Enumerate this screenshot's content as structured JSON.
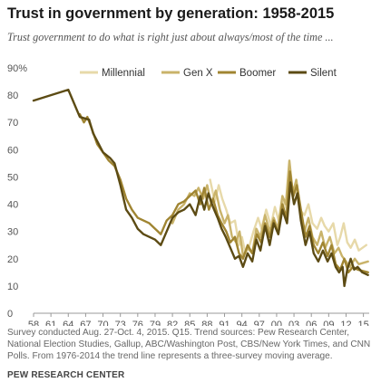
{
  "chart_data": {
    "type": "line",
    "title": "Trust in government by generation: 1958-2015",
    "subtitle": "Trust government to do what is right just about always/most of the time ...",
    "xlabel": "",
    "ylabel": "",
    "xlim": [
      1958,
      2016
    ],
    "ylim": [
      0,
      90
    ],
    "x_tick_labels": [
      "58",
      "61",
      "64",
      "67",
      "70",
      "73",
      "76",
      "79",
      "82",
      "85",
      "88",
      "91",
      "94",
      "97",
      "00",
      "03",
      "06",
      "09",
      "12",
      "15"
    ],
    "x_ticks": [
      1958,
      1961,
      1964,
      1967,
      1970,
      1973,
      1976,
      1979,
      1982,
      1985,
      1988,
      1991,
      1994,
      1997,
      2000,
      2003,
      2006,
      2009,
      2012,
      2015
    ],
    "y_ticks": [
      0,
      10,
      20,
      30,
      40,
      50,
      60,
      70,
      80,
      90
    ],
    "y_tick_labels": [
      "0",
      "10",
      "20",
      "30",
      "40",
      "50",
      "60",
      "70",
      "80",
      "90%"
    ],
    "grid": false,
    "legend_position": "top",
    "series": [
      {
        "name": "Millennial",
        "color": "#e7d9a9",
        "points": [
          [
            1988.5,
            49
          ],
          [
            1989.3,
            41
          ],
          [
            1990,
            47
          ],
          [
            1990.6,
            42
          ],
          [
            1991.3,
            38
          ],
          [
            1992,
            33
          ],
          [
            1992.8,
            34
          ],
          [
            1993.5,
            25
          ],
          [
            1994,
            28
          ],
          [
            1994.6,
            22
          ],
          [
            1995.2,
            24
          ],
          [
            1996,
            30
          ],
          [
            1996.8,
            35
          ],
          [
            1997.4,
            31
          ],
          [
            1998.2,
            38
          ],
          [
            1999,
            32
          ],
          [
            1999.7,
            39
          ],
          [
            2000.5,
            33
          ],
          [
            2001.2,
            41
          ],
          [
            2001.8,
            38
          ],
          [
            2002.3,
            49
          ],
          [
            2002.8,
            42
          ],
          [
            2003.3,
            46
          ],
          [
            2004,
            38
          ],
          [
            2004.8,
            36
          ],
          [
            2005.5,
            40
          ],
          [
            2006.2,
            33
          ],
          [
            2007,
            31
          ],
          [
            2007.7,
            35
          ],
          [
            2008.3,
            32
          ],
          [
            2009,
            30
          ],
          [
            2009.8,
            33
          ],
          [
            2010.5,
            25
          ],
          [
            2011,
            28
          ],
          [
            2011.6,
            33
          ],
          [
            2012.2,
            26
          ],
          [
            2012.8,
            24
          ],
          [
            2013.5,
            27
          ],
          [
            2014.2,
            23
          ],
          [
            2015.5,
            25
          ]
        ]
      },
      {
        "name": "Gen X",
        "color": "#c9b36a",
        "points": [
          [
            1982,
            33
          ],
          [
            1983,
            38
          ],
          [
            1984,
            40
          ],
          [
            1985,
            44
          ],
          [
            1985.8,
            43
          ],
          [
            1986.5,
            46
          ],
          [
            1987.3,
            42
          ],
          [
            1988,
            47
          ],
          [
            1988.7,
            40
          ],
          [
            1989.5,
            45
          ],
          [
            1990.2,
            38
          ],
          [
            1991,
            33
          ],
          [
            1991.6,
            36
          ],
          [
            1992.3,
            28
          ],
          [
            1993,
            26
          ],
          [
            1993.6,
            30
          ],
          [
            1994.2,
            21
          ],
          [
            1995,
            24
          ],
          [
            1995.8,
            22
          ],
          [
            1996.5,
            31
          ],
          [
            1997.2,
            28
          ],
          [
            1998,
            36
          ],
          [
            1998.8,
            30
          ],
          [
            1999.5,
            35
          ],
          [
            2000.2,
            31
          ],
          [
            2001,
            43
          ],
          [
            2001.6,
            40
          ],
          [
            2002.2,
            56
          ],
          [
            2002.8,
            44
          ],
          [
            2003.4,
            49
          ],
          [
            2004,
            40
          ],
          [
            2004.8,
            30
          ],
          [
            2005.5,
            35
          ],
          [
            2006.2,
            28
          ],
          [
            2007,
            25
          ],
          [
            2007.7,
            30
          ],
          [
            2008.4,
            24
          ],
          [
            2009.2,
            28
          ],
          [
            2010,
            22
          ],
          [
            2010.7,
            24
          ],
          [
            2011.3,
            21
          ],
          [
            2012,
            19
          ],
          [
            2012.7,
            17
          ],
          [
            2013.5,
            20
          ],
          [
            2014.2,
            18
          ],
          [
            2015.8,
            19
          ]
        ]
      },
      {
        "name": "Boomer",
        "color": "#a08532",
        "points": [
          [
            1966,
            73
          ],
          [
            1966.7,
            70
          ],
          [
            1967.3,
            72
          ],
          [
            1968,
            68
          ],
          [
            1969,
            62
          ],
          [
            1970,
            59
          ],
          [
            1971,
            56
          ],
          [
            1972,
            54
          ],
          [
            1973,
            49
          ],
          [
            1974,
            42
          ],
          [
            1975,
            38
          ],
          [
            1976,
            35
          ],
          [
            1977,
            34
          ],
          [
            1978,
            33
          ],
          [
            1979,
            31
          ],
          [
            1980,
            29
          ],
          [
            1981,
            34
          ],
          [
            1982,
            36
          ],
          [
            1983,
            40
          ],
          [
            1984,
            41
          ],
          [
            1985,
            43
          ],
          [
            1986,
            45
          ],
          [
            1986.8,
            40
          ],
          [
            1987.5,
            46
          ],
          [
            1988.3,
            38
          ],
          [
            1989,
            42
          ],
          [
            1989.8,
            36
          ],
          [
            1990.5,
            33
          ],
          [
            1991.3,
            30
          ],
          [
            1992,
            26
          ],
          [
            1992.8,
            28
          ],
          [
            1993.5,
            22
          ],
          [
            1994.2,
            20
          ],
          [
            1995,
            25
          ],
          [
            1995.8,
            22
          ],
          [
            1996.6,
            29
          ],
          [
            1997.3,
            26
          ],
          [
            1998,
            33
          ],
          [
            1998.8,
            28
          ],
          [
            1999.5,
            34
          ],
          [
            2000.3,
            29
          ],
          [
            2001,
            40
          ],
          [
            2001.7,
            35
          ],
          [
            2002.3,
            52
          ],
          [
            2002.9,
            43
          ],
          [
            2003.5,
            47
          ],
          [
            2004.2,
            38
          ],
          [
            2005,
            28
          ],
          [
            2005.7,
            32
          ],
          [
            2006.4,
            25
          ],
          [
            2007.2,
            22
          ],
          [
            2008,
            26
          ],
          [
            2008.8,
            21
          ],
          [
            2009.5,
            25
          ],
          [
            2010.2,
            18
          ],
          [
            2011,
            16
          ],
          [
            2011.7,
            20
          ],
          [
            2012.4,
            15
          ],
          [
            2013.2,
            17
          ],
          [
            2014,
            16
          ],
          [
            2015.8,
            15
          ]
        ]
      },
      {
        "name": "Silent",
        "color": "#5c4b14",
        "points": [
          [
            1958,
            78
          ],
          [
            1961,
            80
          ],
          [
            1964,
            82
          ],
          [
            1966,
            72
          ],
          [
            1967.6,
            71
          ],
          [
            1968.3,
            66
          ],
          [
            1970,
            59
          ],
          [
            1971.2,
            57
          ],
          [
            1972,
            55
          ],
          [
            1973,
            47
          ],
          [
            1974,
            38
          ],
          [
            1975,
            35
          ],
          [
            1976,
            31
          ],
          [
            1977,
            29
          ],
          [
            1978,
            28
          ],
          [
            1979,
            27
          ],
          [
            1980,
            25
          ],
          [
            1981,
            30
          ],
          [
            1982,
            35
          ],
          [
            1983,
            37
          ],
          [
            1984,
            38
          ],
          [
            1985,
            40
          ],
          [
            1986,
            36
          ],
          [
            1986.8,
            43
          ],
          [
            1987.5,
            38
          ],
          [
            1988.2,
            44
          ],
          [
            1989,
            39
          ],
          [
            1989.8,
            35
          ],
          [
            1990.5,
            31
          ],
          [
            1991.2,
            28
          ],
          [
            1992,
            24
          ],
          [
            1992.8,
            20
          ],
          [
            1993.5,
            21
          ],
          [
            1994.2,
            17
          ],
          [
            1995,
            22
          ],
          [
            1995.8,
            19
          ],
          [
            1996.5,
            27
          ],
          [
            1997.2,
            23
          ],
          [
            1998,
            32
          ],
          [
            1998.8,
            25
          ],
          [
            1999.5,
            33
          ],
          [
            2000.3,
            29
          ],
          [
            2001,
            38
          ],
          [
            2001.8,
            33
          ],
          [
            2002.4,
            48
          ],
          [
            2003,
            40
          ],
          [
            2003.6,
            44
          ],
          [
            2004.2,
            34
          ],
          [
            2005,
            25
          ],
          [
            2005.7,
            30
          ],
          [
            2006.4,
            22
          ],
          [
            2007.2,
            19
          ],
          [
            2008,
            23
          ],
          [
            2008.8,
            19
          ],
          [
            2009.5,
            22
          ],
          [
            2010.2,
            17
          ],
          [
            2010.8,
            15
          ],
          [
            2011.4,
            17
          ],
          [
            2011.7,
            10
          ],
          [
            2012.2,
            16
          ],
          [
            2012.8,
            20
          ],
          [
            2013.4,
            16
          ],
          [
            2014,
            17
          ],
          [
            2014.8,
            15
          ],
          [
            2015.8,
            14
          ]
        ]
      }
    ]
  },
  "footer": {
    "note": "Survey conducted Aug. 27-Oct. 4, 2015. Q15. Trend sources: Pew Research Center, National Election Studies, Gallup, ABC/Washington Post, CBS/New York Times, and CNN Polls. From 1976-2014 the trend line represents a three-survey moving average.",
    "source": "PEW RESEARCH CENTER"
  }
}
